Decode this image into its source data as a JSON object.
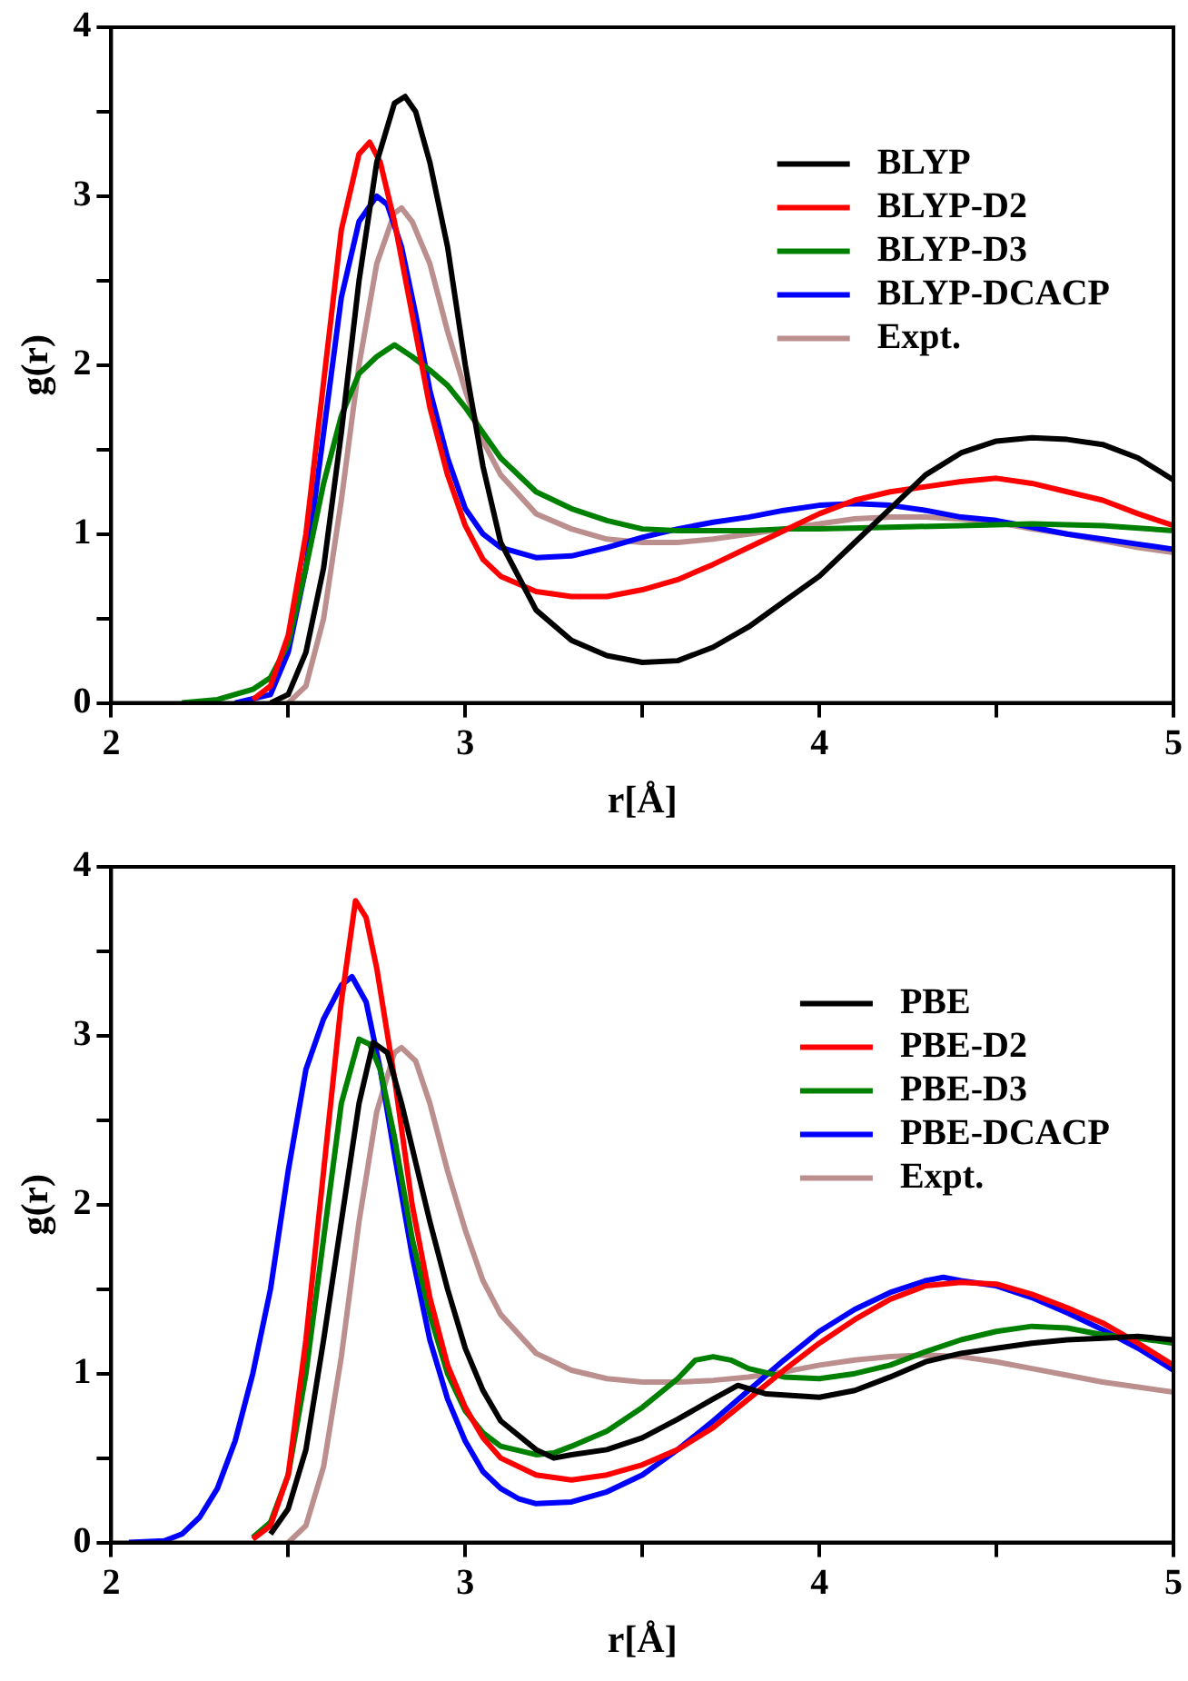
{
  "chart_data": [
    {
      "type": "line",
      "xlabel": "r[Å]",
      "ylabel": "g(r)",
      "xlim": [
        2,
        5
      ],
      "ylim": [
        0,
        4
      ],
      "xticks": [
        2,
        {
          "value": 2.5,
          "label": null
        },
        3,
        {
          "value": 3.5,
          "label": null
        },
        4,
        {
          "value": 4.5,
          "label": null
        },
        5
      ],
      "yticks": [
        0,
        {
          "value": 0.5,
          "label": null
        },
        1,
        {
          "value": 1.5,
          "label": null
        },
        2,
        {
          "value": 2.5,
          "label": null
        },
        3,
        {
          "value": 3.5,
          "label": null
        },
        4
      ],
      "legend": "right",
      "marker": "none",
      "line_style": "solid",
      "series": [
        {
          "name": "BLYP",
          "color": "#000000",
          "x": [
            2.45,
            2.5,
            2.55,
            2.6,
            2.65,
            2.7,
            2.75,
            2.8,
            2.83,
            2.86,
            2.9,
            2.95,
            3.0,
            3.05,
            3.1,
            3.2,
            3.3,
            3.4,
            3.5,
            3.6,
            3.7,
            3.8,
            3.9,
            4.0,
            4.1,
            4.2,
            4.3,
            4.4,
            4.5,
            4.6,
            4.7,
            4.8,
            4.9,
            5.0
          ],
          "values": [
            0,
            0.05,
            0.3,
            0.8,
            1.6,
            2.5,
            3.2,
            3.55,
            3.59,
            3.5,
            3.2,
            2.7,
            2.0,
            1.4,
            0.95,
            0.55,
            0.37,
            0.28,
            0.24,
            0.25,
            0.33,
            0.45,
            0.6,
            0.75,
            0.95,
            1.15,
            1.35,
            1.48,
            1.55,
            1.57,
            1.56,
            1.53,
            1.45,
            1.32
          ]
        },
        {
          "name": "BLYP-D2",
          "color": "#ff0000",
          "x": [
            2.4,
            2.45,
            2.5,
            2.55,
            2.6,
            2.65,
            2.7,
            2.73,
            2.76,
            2.8,
            2.85,
            2.9,
            2.95,
            3.0,
            3.05,
            3.1,
            3.2,
            3.3,
            3.4,
            3.5,
            3.6,
            3.7,
            3.8,
            3.9,
            4.0,
            4.1,
            4.2,
            4.3,
            4.4,
            4.5,
            4.6,
            4.7,
            4.8,
            4.9,
            5.0
          ],
          "values": [
            0.02,
            0.1,
            0.4,
            1.0,
            1.9,
            2.8,
            3.25,
            3.32,
            3.2,
            2.85,
            2.3,
            1.75,
            1.35,
            1.05,
            0.85,
            0.75,
            0.66,
            0.63,
            0.63,
            0.67,
            0.73,
            0.82,
            0.92,
            1.02,
            1.12,
            1.2,
            1.25,
            1.28,
            1.31,
            1.33,
            1.3,
            1.25,
            1.2,
            1.12,
            1.05
          ]
        },
        {
          "name": "BLYP-D3",
          "color": "#008000",
          "x": [
            2.2,
            2.3,
            2.4,
            2.45,
            2.5,
            2.55,
            2.6,
            2.65,
            2.7,
            2.75,
            2.8,
            2.85,
            2.9,
            2.95,
            3.0,
            3.05,
            3.1,
            3.2,
            3.3,
            3.4,
            3.5,
            3.6,
            3.7,
            3.8,
            3.9,
            4.0,
            4.2,
            4.4,
            4.6,
            4.8,
            5.0
          ],
          "values": [
            0,
            0.02,
            0.08,
            0.15,
            0.35,
            0.8,
            1.3,
            1.7,
            1.95,
            2.05,
            2.12,
            2.05,
            1.97,
            1.88,
            1.75,
            1.6,
            1.45,
            1.25,
            1.15,
            1.08,
            1.03,
            1.02,
            1.02,
            1.02,
            1.03,
            1.03,
            1.04,
            1.05,
            1.06,
            1.05,
            1.02
          ]
        },
        {
          "name": "BLYP-DCACP",
          "color": "#0000ff",
          "x": [
            2.35,
            2.45,
            2.5,
            2.55,
            2.6,
            2.65,
            2.7,
            2.75,
            2.78,
            2.82,
            2.86,
            2.9,
            2.95,
            3.0,
            3.05,
            3.1,
            3.2,
            3.3,
            3.4,
            3.5,
            3.6,
            3.7,
            3.8,
            3.9,
            4.0,
            4.1,
            4.2,
            4.3,
            4.4,
            4.5,
            4.6,
            4.7,
            4.8,
            4.9,
            5.0
          ],
          "values": [
            0,
            0.05,
            0.3,
            0.8,
            1.6,
            2.4,
            2.85,
            3.0,
            2.95,
            2.7,
            2.3,
            1.85,
            1.45,
            1.15,
            1.0,
            0.92,
            0.86,
            0.87,
            0.92,
            0.98,
            1.03,
            1.07,
            1.1,
            1.14,
            1.17,
            1.18,
            1.17,
            1.14,
            1.1,
            1.08,
            1.04,
            1.0,
            0.97,
            0.94,
            0.91
          ]
        },
        {
          "name": "Expt.",
          "color": "#bc8f8f",
          "x": [
            2.5,
            2.55,
            2.6,
            2.65,
            2.7,
            2.75,
            2.8,
            2.82,
            2.85,
            2.9,
            2.95,
            3.0,
            3.05,
            3.1,
            3.2,
            3.3,
            3.4,
            3.5,
            3.6,
            3.7,
            3.8,
            3.9,
            4.0,
            4.1,
            4.2,
            4.3,
            4.4,
            4.5,
            4.6,
            4.7,
            4.8,
            4.9,
            5.0
          ],
          "values": [
            0,
            0.1,
            0.5,
            1.2,
            2.0,
            2.6,
            2.9,
            2.93,
            2.85,
            2.6,
            2.2,
            1.85,
            1.55,
            1.35,
            1.12,
            1.03,
            0.97,
            0.95,
            0.95,
            0.97,
            1.0,
            1.03,
            1.06,
            1.09,
            1.1,
            1.1,
            1.09,
            1.07,
            1.03,
            1.0,
            0.96,
            0.92,
            0.89
          ]
        }
      ]
    },
    {
      "type": "line",
      "xlabel": "r[Å]",
      "ylabel": "g(r)",
      "xlim": [
        2,
        5
      ],
      "ylim": [
        0,
        4
      ],
      "xticks": [
        2,
        {
          "value": 2.5,
          "label": null
        },
        3,
        {
          "value": 3.5,
          "label": null
        },
        4,
        {
          "value": 4.5,
          "label": null
        },
        5
      ],
      "yticks": [
        0,
        {
          "value": 0.5,
          "label": null
        },
        1,
        {
          "value": 1.5,
          "label": null
        },
        2,
        {
          "value": 2.5,
          "label": null
        },
        3,
        {
          "value": 3.5,
          "label": null
        },
        4
      ],
      "legend": "right",
      "marker": "none",
      "line_style": "solid",
      "series": [
        {
          "name": "PBE",
          "color": "#000000",
          "x": [
            2.45,
            2.5,
            2.55,
            2.6,
            2.65,
            2.7,
            2.74,
            2.78,
            2.82,
            2.86,
            2.9,
            2.95,
            3.0,
            3.05,
            3.1,
            3.2,
            3.25,
            3.3,
            3.4,
            3.5,
            3.6,
            3.7,
            3.77,
            3.85,
            4.0,
            4.1,
            4.2,
            4.3,
            4.4,
            4.5,
            4.6,
            4.7,
            4.8,
            4.9,
            5.0
          ],
          "values": [
            0.05,
            0.2,
            0.55,
            1.2,
            1.9,
            2.6,
            2.96,
            2.9,
            2.6,
            2.25,
            1.9,
            1.5,
            1.15,
            0.9,
            0.72,
            0.55,
            0.5,
            0.52,
            0.55,
            0.62,
            0.73,
            0.85,
            0.93,
            0.88,
            0.86,
            0.9,
            0.98,
            1.07,
            1.12,
            1.15,
            1.18,
            1.2,
            1.21,
            1.22,
            1.2
          ]
        },
        {
          "name": "PBE-D2",
          "color": "#ff0000",
          "x": [
            2.4,
            2.45,
            2.5,
            2.55,
            2.6,
            2.65,
            2.69,
            2.72,
            2.75,
            2.8,
            2.85,
            2.9,
            2.95,
            3.0,
            3.05,
            3.1,
            3.2,
            3.3,
            3.4,
            3.5,
            3.6,
            3.7,
            3.8,
            3.9,
            4.0,
            4.1,
            4.2,
            4.3,
            4.4,
            4.5,
            4.6,
            4.7,
            4.8,
            4.9,
            5.0
          ],
          "values": [
            0.02,
            0.1,
            0.4,
            1.2,
            2.2,
            3.2,
            3.8,
            3.7,
            3.4,
            2.75,
            2.0,
            1.45,
            1.05,
            0.8,
            0.62,
            0.5,
            0.4,
            0.37,
            0.4,
            0.46,
            0.55,
            0.68,
            0.85,
            1.02,
            1.18,
            1.32,
            1.44,
            1.52,
            1.54,
            1.53,
            1.47,
            1.39,
            1.3,
            1.18,
            1.05
          ]
        },
        {
          "name": "PBE-D3",
          "color": "#008000",
          "x": [
            2.4,
            2.45,
            2.5,
            2.55,
            2.6,
            2.65,
            2.7,
            2.73,
            2.76,
            2.8,
            2.85,
            2.9,
            2.95,
            3.0,
            3.05,
            3.1,
            3.2,
            3.25,
            3.3,
            3.4,
            3.5,
            3.6,
            3.65,
            3.7,
            3.75,
            3.8,
            3.9,
            4.0,
            4.1,
            4.2,
            4.3,
            4.4,
            4.5,
            4.6,
            4.7,
            4.8,
            4.9,
            5.0
          ],
          "values": [
            0.03,
            0.12,
            0.4,
            1.0,
            1.8,
            2.6,
            2.98,
            2.95,
            2.8,
            2.4,
            1.8,
            1.35,
            1.0,
            0.78,
            0.65,
            0.57,
            0.52,
            0.53,
            0.57,
            0.66,
            0.8,
            0.97,
            1.08,
            1.1,
            1.08,
            1.03,
            0.98,
            0.97,
            1.0,
            1.05,
            1.13,
            1.2,
            1.25,
            1.28,
            1.27,
            1.23,
            1.21,
            1.18
          ]
        },
        {
          "name": "PBE-DCACP",
          "color": "#0000ff",
          "x": [
            2.05,
            2.15,
            2.2,
            2.25,
            2.3,
            2.35,
            2.4,
            2.45,
            2.5,
            2.55,
            2.6,
            2.65,
            2.68,
            2.72,
            2.76,
            2.8,
            2.85,
            2.9,
            2.95,
            3.0,
            3.05,
            3.1,
            3.15,
            3.2,
            3.3,
            3.4,
            3.5,
            3.6,
            3.7,
            3.8,
            3.9,
            4.0,
            4.1,
            4.2,
            4.3,
            4.35,
            4.4,
            4.5,
            4.6,
            4.7,
            4.8,
            4.9,
            5.0
          ],
          "values": [
            0,
            0.01,
            0.05,
            0.15,
            0.32,
            0.6,
            1.0,
            1.5,
            2.2,
            2.8,
            3.1,
            3.3,
            3.35,
            3.2,
            2.8,
            2.3,
            1.7,
            1.2,
            0.85,
            0.6,
            0.42,
            0.32,
            0.26,
            0.23,
            0.24,
            0.3,
            0.4,
            0.55,
            0.72,
            0.9,
            1.08,
            1.25,
            1.38,
            1.48,
            1.55,
            1.57,
            1.55,
            1.52,
            1.45,
            1.36,
            1.26,
            1.15,
            1.02
          ]
        },
        {
          "name": "Expt.",
          "color": "#bc8f8f",
          "x": [
            2.5,
            2.55,
            2.6,
            2.65,
            2.7,
            2.75,
            2.8,
            2.82,
            2.86,
            2.9,
            2.95,
            3.0,
            3.05,
            3.1,
            3.2,
            3.3,
            3.4,
            3.5,
            3.6,
            3.7,
            3.8,
            3.9,
            4.0,
            4.1,
            4.2,
            4.3,
            4.4,
            4.5,
            4.6,
            4.7,
            4.8,
            4.9,
            5.0
          ],
          "values": [
            0,
            0.1,
            0.45,
            1.1,
            1.9,
            2.55,
            2.9,
            2.93,
            2.85,
            2.6,
            2.2,
            1.85,
            1.55,
            1.35,
            1.12,
            1.02,
            0.97,
            0.95,
            0.95,
            0.96,
            0.98,
            1.01,
            1.05,
            1.08,
            1.1,
            1.11,
            1.1,
            1.07,
            1.03,
            0.99,
            0.95,
            0.92,
            0.89
          ]
        }
      ]
    }
  ]
}
